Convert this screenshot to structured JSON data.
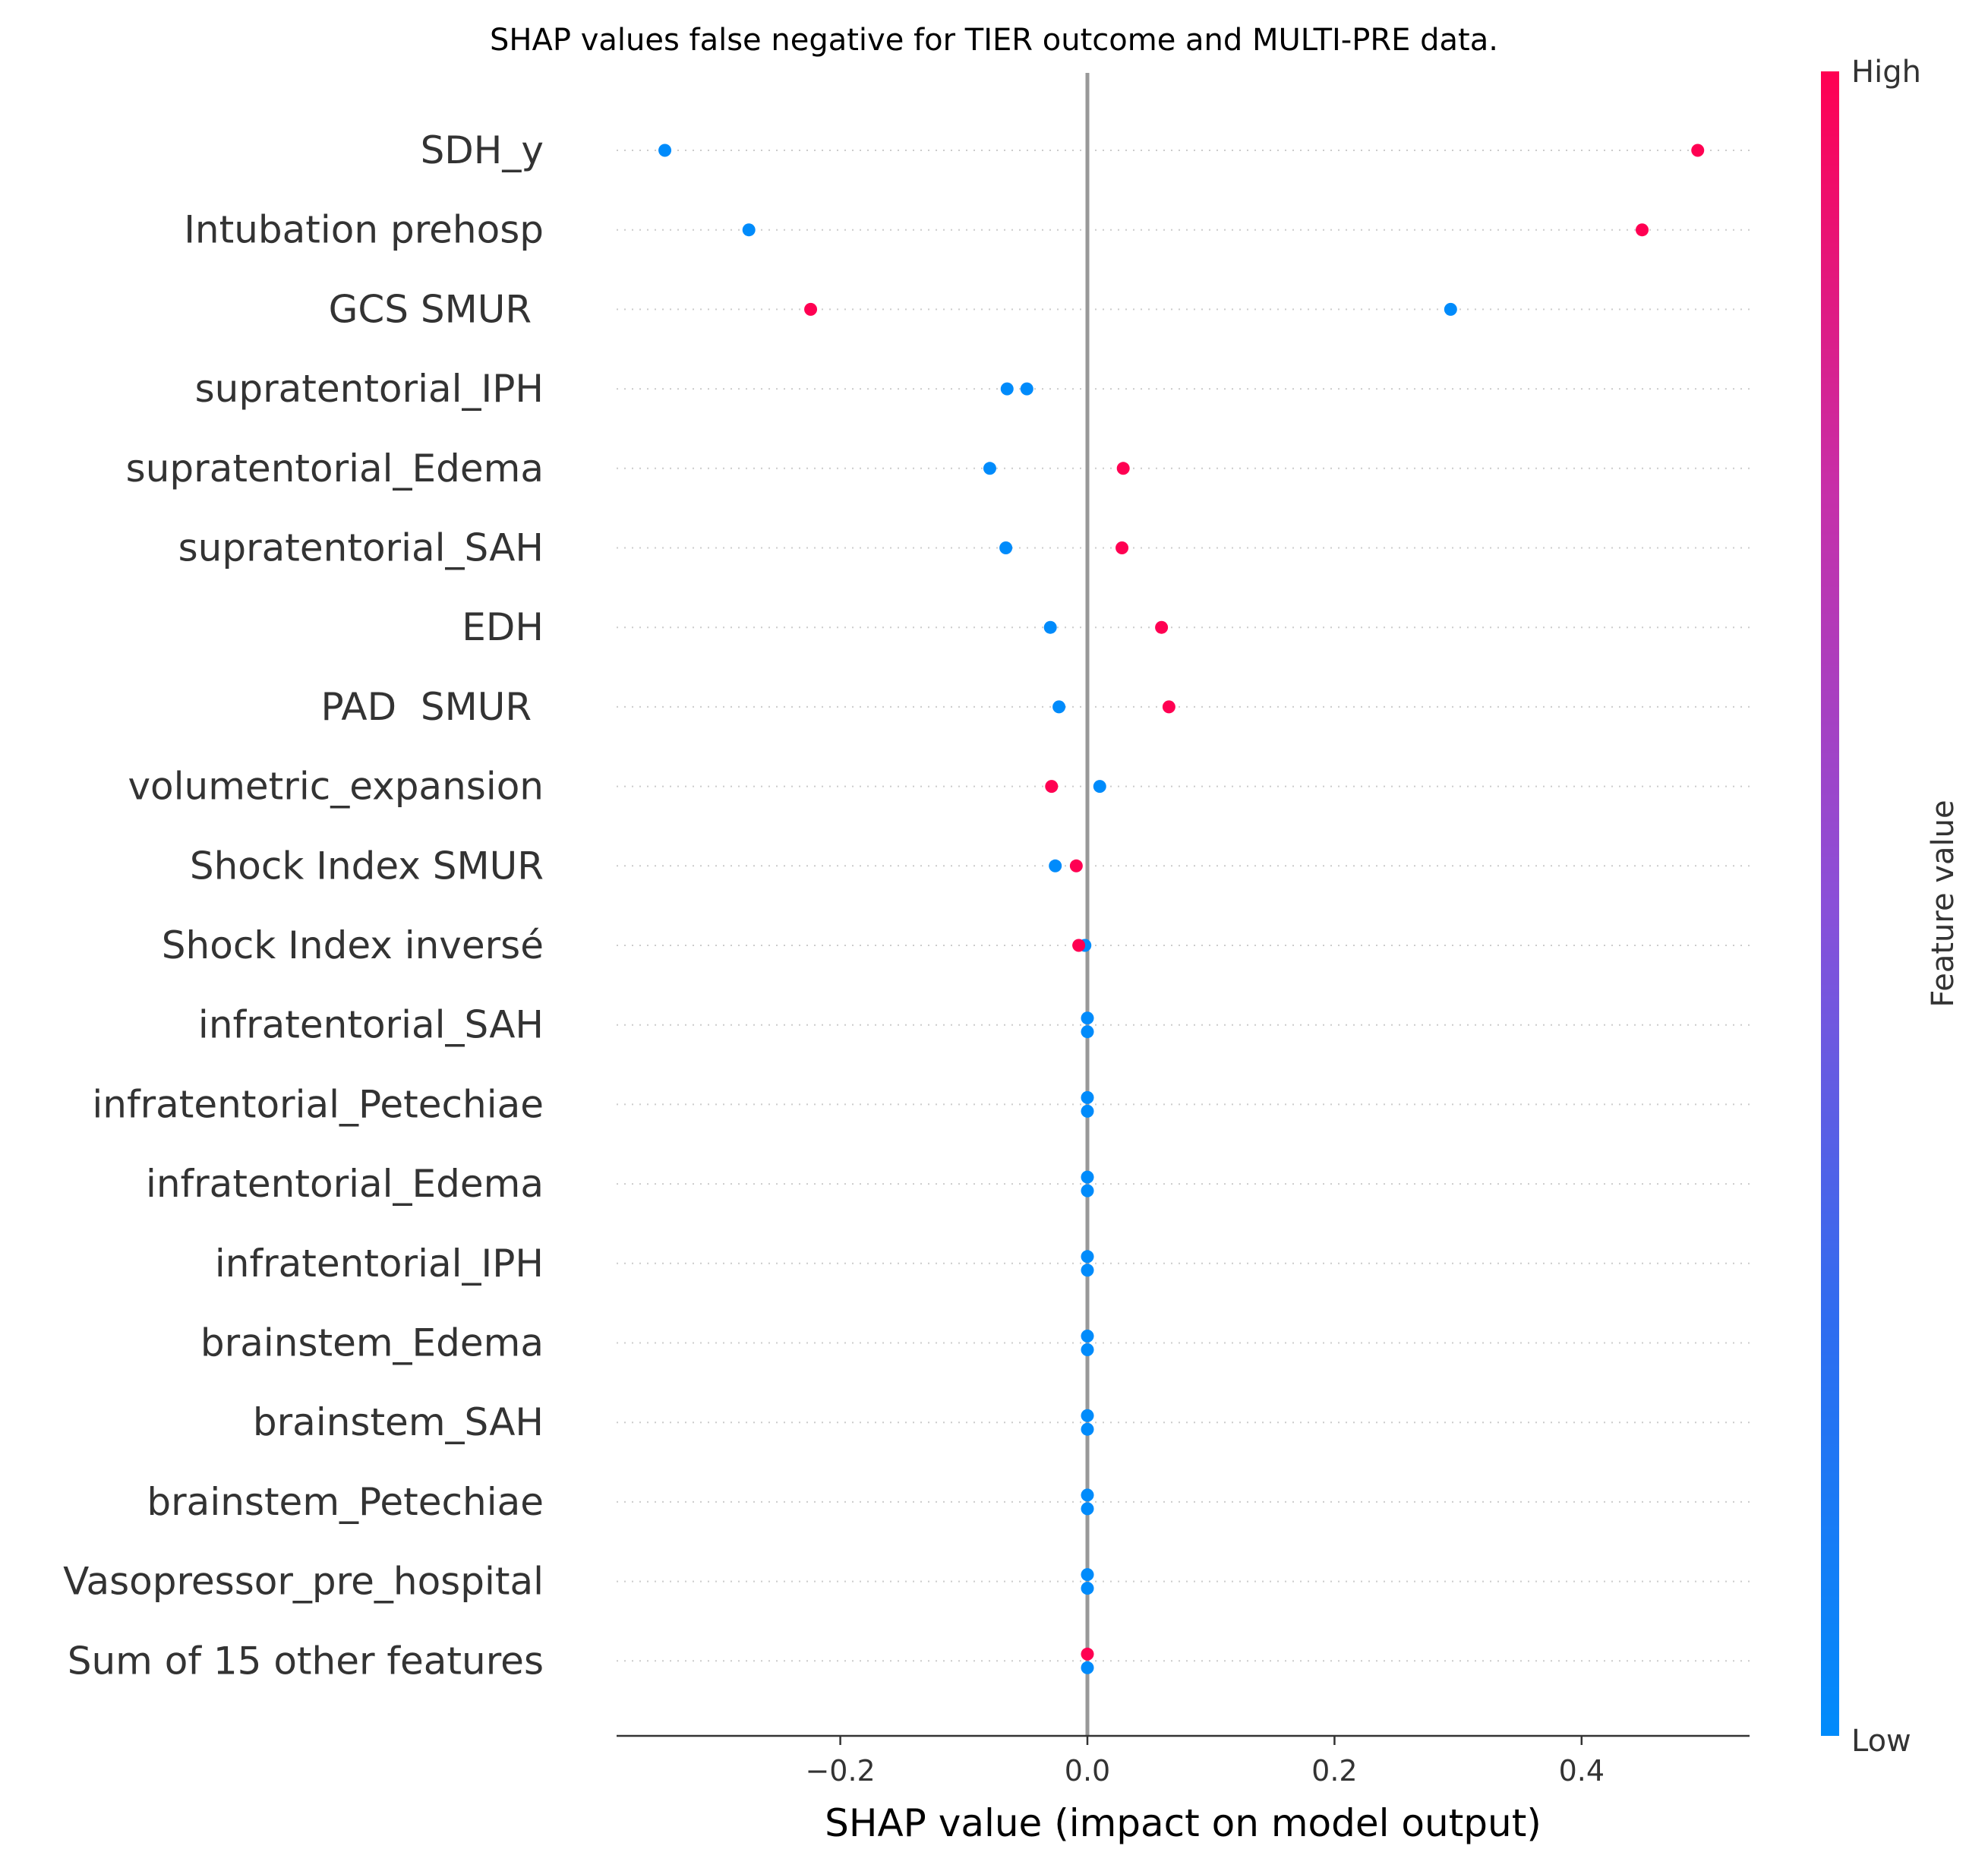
{
  "chart_data": {
    "type": "scatter",
    "title": "SHAP values false negative for TIER outcome and MULTI-PRE data.",
    "xlabel": "SHAP value (impact on model output)",
    "ylabel": "",
    "xlim": [
      -0.38,
      0.54
    ],
    "x_ticks": [
      {
        "value": -0.2,
        "label": "−0.2"
      },
      {
        "value": 0.0,
        "label": "0.0"
      },
      {
        "value": 0.2,
        "label": "0.2"
      },
      {
        "value": 0.4,
        "label": "0.4"
      }
    ],
    "colorbar": {
      "label": "Feature value",
      "high": "High",
      "low": "Low"
    },
    "colors": {
      "high": "#ff0052",
      "low": "#008bfb",
      "zero_line": "#999999",
      "grid": "#cccccc",
      "axis": "#333333"
    },
    "features": [
      {
        "label": "SDH_y",
        "points": [
          {
            "x": -0.342,
            "value": "low"
          },
          {
            "x": 0.494,
            "value": "high"
          }
        ]
      },
      {
        "label": "Intubation prehosp",
        "points": [
          {
            "x": -0.274,
            "value": "low"
          },
          {
            "x": 0.449,
            "value": "high"
          }
        ]
      },
      {
        "label": "GCS SMUR ",
        "points": [
          {
            "x": -0.224,
            "value": "high"
          },
          {
            "x": 0.294,
            "value": "low"
          }
        ]
      },
      {
        "label": "supratentorial_IPH",
        "points": [
          {
            "x": -0.065,
            "value": "low"
          },
          {
            "x": -0.049,
            "value": "low"
          }
        ]
      },
      {
        "label": "supratentorial_Edema",
        "points": [
          {
            "x": -0.079,
            "value": "low"
          },
          {
            "x": 0.029,
            "value": "high"
          }
        ]
      },
      {
        "label": "supratentorial_SAH",
        "points": [
          {
            "x": -0.066,
            "value": "low"
          },
          {
            "x": 0.028,
            "value": "high"
          }
        ]
      },
      {
        "label": "EDH",
        "points": [
          {
            "x": -0.03,
            "value": "low"
          },
          {
            "x": 0.06,
            "value": "high"
          }
        ]
      },
      {
        "label": "PAD  SMUR ",
        "points": [
          {
            "x": -0.023,
            "value": "low"
          },
          {
            "x": 0.066,
            "value": "high"
          }
        ]
      },
      {
        "label": "volumetric_expansion",
        "points": [
          {
            "x": -0.029,
            "value": "high"
          },
          {
            "x": 0.01,
            "value": "low"
          }
        ]
      },
      {
        "label": "Shock Index SMUR",
        "points": [
          {
            "x": -0.026,
            "value": "low"
          },
          {
            "x": -0.009,
            "value": "high"
          }
        ]
      },
      {
        "label": "Shock Index inversé",
        "points": [
          {
            "x": -0.002,
            "value": "low"
          },
          {
            "x": -0.007,
            "value": "high"
          }
        ]
      },
      {
        "label": "infratentorial_SAH",
        "points": [
          {
            "x": 0.0,
            "value": "low"
          },
          {
            "x": 0.0,
            "value": "low"
          }
        ]
      },
      {
        "label": "infratentorial_Petechiae",
        "points": [
          {
            "x": 0.0,
            "value": "low"
          },
          {
            "x": 0.0,
            "value": "low"
          }
        ]
      },
      {
        "label": "infratentorial_Edema",
        "points": [
          {
            "x": 0.0,
            "value": "low"
          },
          {
            "x": 0.0,
            "value": "low"
          }
        ]
      },
      {
        "label": "infratentorial_IPH",
        "points": [
          {
            "x": 0.0,
            "value": "low"
          },
          {
            "x": 0.0,
            "value": "low"
          }
        ]
      },
      {
        "label": "brainstem_Edema",
        "points": [
          {
            "x": 0.0,
            "value": "low"
          },
          {
            "x": 0.0,
            "value": "low"
          }
        ]
      },
      {
        "label": "brainstem_SAH",
        "points": [
          {
            "x": 0.0,
            "value": "low"
          },
          {
            "x": 0.0,
            "value": "low"
          }
        ]
      },
      {
        "label": "brainstem_Petechiae",
        "points": [
          {
            "x": 0.0,
            "value": "low"
          },
          {
            "x": 0.0,
            "value": "low"
          }
        ]
      },
      {
        "label": "Vasopressor_pre_hospital",
        "points": [
          {
            "x": 0.0,
            "value": "low"
          },
          {
            "x": 0.0,
            "value": "low"
          }
        ]
      },
      {
        "label": "Sum of 15 other features",
        "points": [
          {
            "x": 0.0,
            "value": "high"
          },
          {
            "x": 0.0,
            "value": "low"
          }
        ]
      }
    ]
  }
}
